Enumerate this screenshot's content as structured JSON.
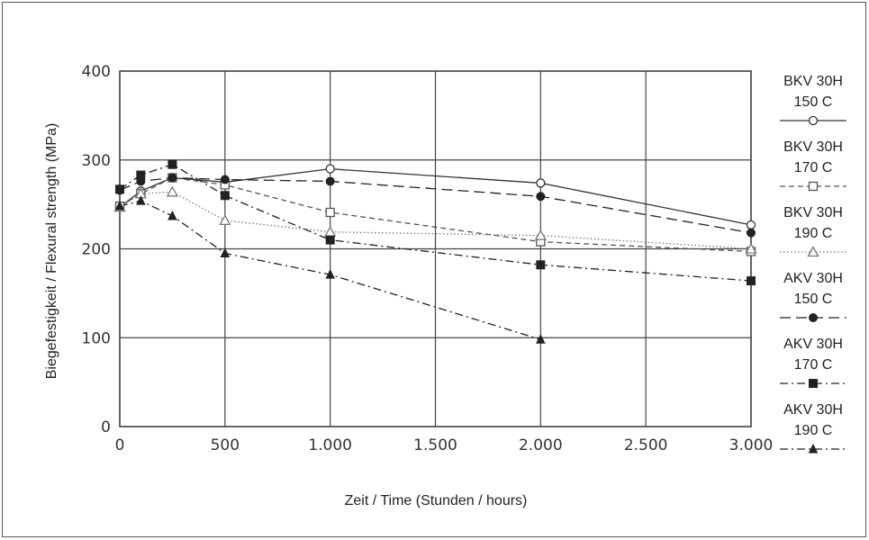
{
  "chart_data": {
    "type": "line",
    "xlabel": "Zeit / Time (Stunden / hours)",
    "ylabel": "Biegefestigkeit / Flexural strength (MPa)",
    "x_ticks": [
      "0",
      "500",
      "1.000",
      "1.500",
      "2.000",
      "2.500",
      "3.000"
    ],
    "y_ticks": [
      "0",
      "100",
      "200",
      "300",
      "400"
    ],
    "xlim": [
      0,
      3000
    ],
    "ylim": [
      0,
      400
    ],
    "grid": true,
    "legend_position": "right",
    "series": [
      {
        "name_line1": "BKV 30H",
        "name_line2": "150 C",
        "style": "solid",
        "marker": "circle-open",
        "color": "#333333",
        "x": [
          0,
          100,
          250,
          500,
          1000,
          2000,
          3000
        ],
        "y": [
          247,
          265,
          280,
          275,
          290,
          274,
          227
        ]
      },
      {
        "name_line1": "BKV 30H",
        "name_line2": "170 C",
        "style": "short-dash",
        "marker": "square-open",
        "color": "#555555",
        "x": [
          0,
          100,
          250,
          500,
          1000,
          2000,
          3000
        ],
        "y": [
          248,
          262,
          280,
          272,
          241,
          208,
          197
        ]
      },
      {
        "name_line1": "BKV 30H",
        "name_line2": "190 C",
        "style": "dotted",
        "marker": "triangle-open",
        "color": "#777777",
        "x": [
          0,
          100,
          250,
          500,
          1000,
          2000,
          3000
        ],
        "y": [
          247,
          262,
          264,
          232,
          219,
          215,
          200
        ]
      },
      {
        "name_line1": "AKV 30H",
        "name_line2": "150 C",
        "style": "long-dash",
        "marker": "circle-filled",
        "color": "#222222",
        "x": [
          0,
          100,
          250,
          500,
          1000,
          2000,
          3000
        ],
        "y": [
          266,
          276,
          280,
          278,
          276,
          259,
          218
        ]
      },
      {
        "name_line1": "AKV 30H",
        "name_line2": "170 C",
        "style": "dash-dot",
        "marker": "square-filled",
        "color": "#222222",
        "x": [
          0,
          100,
          250,
          500,
          1000,
          2000,
          3000
        ],
        "y": [
          267,
          283,
          295,
          260,
          210,
          182,
          164
        ]
      },
      {
        "name_line1": "AKV 30H",
        "name_line2": "190 C",
        "style": "dash-dot",
        "marker": "triangle-filled",
        "color": "#222222",
        "x": [
          0,
          100,
          250,
          500,
          1000,
          2000
        ],
        "y": [
          248,
          254,
          237,
          195,
          171,
          98
        ]
      }
    ]
  }
}
